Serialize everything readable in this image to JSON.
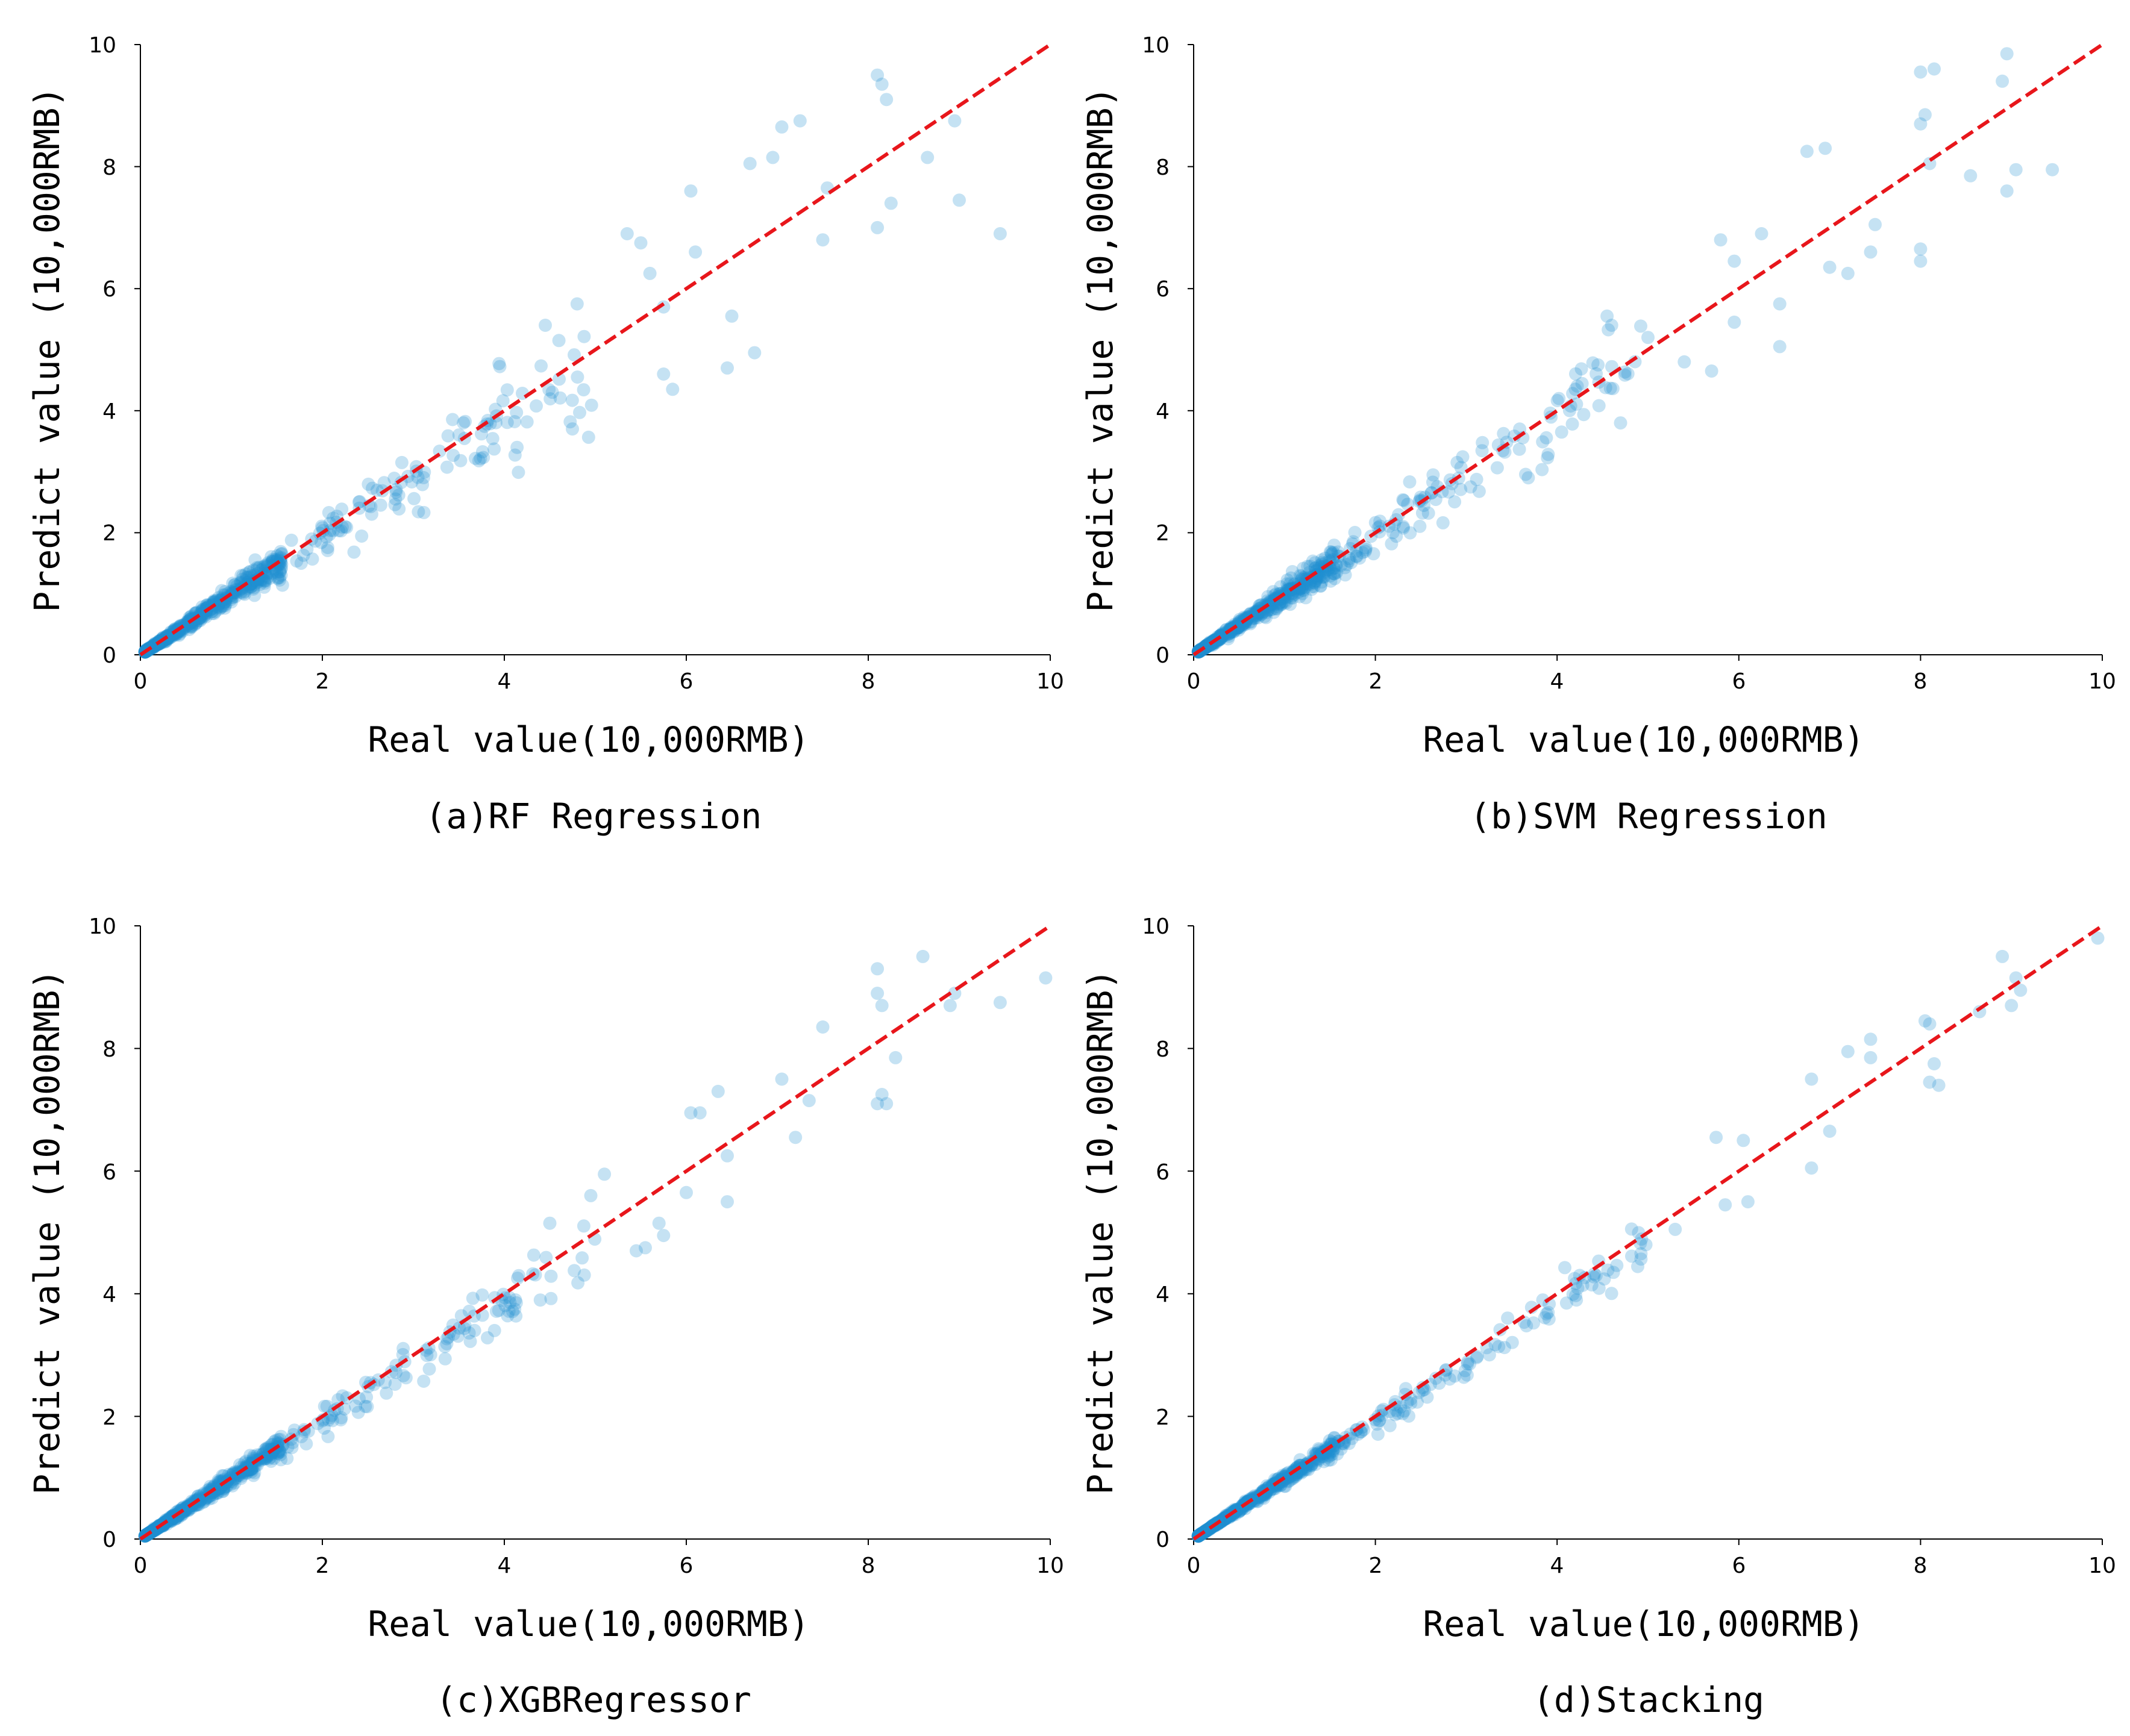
{
  "figure": {
    "colors": {
      "points": "#1f8fd0",
      "reference_line": "#e8161b",
      "axes": "#000000",
      "background": "#ffffff"
    }
  },
  "chart_data": [
    {
      "type": "scatter",
      "caption": "(a)RF Regression",
      "xlabel": "Real value(10,000RMB)",
      "ylabel": "Predict value (10,000RMB)",
      "xlim": [
        0,
        10
      ],
      "ylim": [
        0,
        10
      ],
      "xticks": [
        "0",
        "2",
        "4",
        "6",
        "8",
        "10"
      ],
      "yticks": [
        "0",
        "2",
        "4",
        "6",
        "8",
        "10"
      ],
      "reference_line": {
        "x": [
          0,
          10
        ],
        "y": [
          0,
          10
        ],
        "style": "dashed"
      },
      "highlight_points": [
        [
          8.1,
          9.5
        ],
        [
          8.15,
          9.35
        ],
        [
          8.2,
          9.1
        ],
        [
          7.25,
          8.75
        ],
        [
          7.05,
          8.65
        ],
        [
          6.7,
          8.05
        ],
        [
          6.95,
          8.15
        ],
        [
          7.55,
          7.65
        ],
        [
          8.65,
          8.15
        ],
        [
          8.95,
          8.75
        ],
        [
          9.0,
          7.45
        ],
        [
          9.45,
          6.9
        ],
        [
          7.5,
          6.8
        ],
        [
          8.1,
          7.0
        ],
        [
          8.25,
          7.4
        ],
        [
          6.05,
          7.6
        ],
        [
          6.1,
          6.6
        ],
        [
          5.35,
          6.9
        ],
        [
          5.5,
          6.75
        ],
        [
          5.6,
          6.25
        ],
        [
          5.75,
          5.7
        ],
        [
          6.5,
          5.55
        ],
        [
          6.75,
          4.95
        ],
        [
          6.45,
          4.7
        ],
        [
          5.85,
          4.35
        ],
        [
          5.75,
          4.6
        ],
        [
          4.8,
          5.75
        ],
        [
          4.45,
          5.4
        ],
        [
          4.6,
          5.15
        ]
      ],
      "seed": 11,
      "n_dense": 520,
      "n_sparse": 130,
      "dense_spread": 0.09,
      "sparse_spread": 0.11
    },
    {
      "type": "scatter",
      "caption": "(b)SVM Regression",
      "xlabel": "Real value(10,000RMB)",
      "ylabel": "Predict value (10,000RMB)",
      "xlim": [
        0,
        10
      ],
      "ylim": [
        0,
        10
      ],
      "xticks": [
        "0",
        "2",
        "4",
        "6",
        "8",
        "10"
      ],
      "yticks": [
        "0",
        "2",
        "4",
        "6",
        "8",
        "10"
      ],
      "reference_line": {
        "x": [
          0,
          10
        ],
        "y": [
          0,
          10
        ],
        "style": "dashed"
      },
      "highlight_points": [
        [
          8.0,
          9.55
        ],
        [
          8.95,
          9.85
        ],
        [
          8.15,
          9.6
        ],
        [
          8.9,
          9.4
        ],
        [
          8.05,
          8.85
        ],
        [
          8.0,
          8.7
        ],
        [
          6.75,
          8.25
        ],
        [
          6.95,
          8.3
        ],
        [
          8.1,
          8.05
        ],
        [
          8.55,
          7.85
        ],
        [
          9.05,
          7.95
        ],
        [
          8.95,
          7.6
        ],
        [
          9.45,
          7.95
        ],
        [
          8.0,
          6.65
        ],
        [
          8.0,
          6.45
        ],
        [
          7.5,
          7.05
        ],
        [
          7.45,
          6.6
        ],
        [
          7.0,
          6.35
        ],
        [
          7.2,
          6.25
        ],
        [
          6.25,
          6.9
        ],
        [
          5.8,
          6.8
        ],
        [
          5.95,
          6.45
        ],
        [
          6.45,
          5.75
        ],
        [
          5.95,
          5.45
        ],
        [
          6.45,
          5.05
        ],
        [
          5.4,
          4.8
        ],
        [
          5.7,
          4.65
        ],
        [
          5.0,
          5.2
        ],
        [
          4.55,
          5.55
        ],
        [
          4.6,
          5.4
        ],
        [
          4.45,
          4.75
        ],
        [
          4.2,
          4.35
        ],
        [
          4.05,
          3.65
        ]
      ],
      "seed": 23,
      "n_dense": 520,
      "n_sparse": 130,
      "dense_spread": 0.08,
      "sparse_spread": 0.1
    },
    {
      "type": "scatter",
      "caption": "(c)XGBRegressor",
      "xlabel": "Real value(10,000RMB)",
      "ylabel": "Predict value (10,000RMB)",
      "xlim": [
        0,
        10
      ],
      "ylim": [
        0,
        10
      ],
      "xticks": [
        "0",
        "2",
        "4",
        "6",
        "8",
        "10"
      ],
      "yticks": [
        "0",
        "2",
        "4",
        "6",
        "8",
        "10"
      ],
      "reference_line": {
        "x": [
          0,
          10
        ],
        "y": [
          0,
          10
        ],
        "style": "dashed"
      },
      "highlight_points": [
        [
          8.6,
          9.5
        ],
        [
          8.1,
          9.3
        ],
        [
          8.1,
          8.9
        ],
        [
          8.15,
          8.7
        ],
        [
          8.95,
          8.9
        ],
        [
          8.9,
          8.7
        ],
        [
          9.45,
          8.75
        ],
        [
          9.95,
          9.15
        ],
        [
          7.5,
          8.35
        ],
        [
          8.3,
          7.85
        ],
        [
          8.15,
          7.25
        ],
        [
          8.1,
          7.1
        ],
        [
          8.2,
          7.1
        ],
        [
          7.35,
          7.15
        ],
        [
          7.05,
          7.5
        ],
        [
          7.2,
          6.55
        ],
        [
          6.35,
          7.3
        ],
        [
          6.15,
          6.95
        ],
        [
          6.05,
          6.95
        ],
        [
          6.45,
          6.25
        ],
        [
          6.45,
          5.5
        ],
        [
          6.0,
          5.65
        ],
        [
          5.7,
          5.15
        ],
        [
          5.75,
          4.95
        ],
        [
          5.55,
          4.75
        ],
        [
          5.45,
          4.7
        ],
        [
          5.1,
          5.95
        ],
        [
          4.95,
          5.6
        ],
        [
          4.5,
          5.15
        ]
      ],
      "seed": 37,
      "n_dense": 520,
      "n_sparse": 120,
      "dense_spread": 0.06,
      "sparse_spread": 0.07
    },
    {
      "type": "scatter",
      "caption": "(d)Stacking",
      "xlabel": "Real value(10,000RMB)",
      "ylabel": "Predict value (10,000RMB)",
      "xlim": [
        0,
        10
      ],
      "ylim": [
        0,
        10
      ],
      "xticks": [
        "0",
        "2",
        "4",
        "6",
        "8",
        "10"
      ],
      "yticks": [
        "0",
        "2",
        "4",
        "6",
        "8",
        "10"
      ],
      "reference_line": {
        "x": [
          0,
          10
        ],
        "y": [
          0,
          10
        ],
        "style": "dashed"
      },
      "highlight_points": [
        [
          9.95,
          9.8
        ],
        [
          8.9,
          9.5
        ],
        [
          9.05,
          9.15
        ],
        [
          9.1,
          8.95
        ],
        [
          9.0,
          8.7
        ],
        [
          8.65,
          8.6
        ],
        [
          8.05,
          8.45
        ],
        [
          8.1,
          8.4
        ],
        [
          7.45,
          8.15
        ],
        [
          7.45,
          7.85
        ],
        [
          7.2,
          7.95
        ],
        [
          8.15,
          7.75
        ],
        [
          8.1,
          7.45
        ],
        [
          8.2,
          7.4
        ],
        [
          6.8,
          7.5
        ],
        [
          6.8,
          6.05
        ],
        [
          7.0,
          6.65
        ],
        [
          6.05,
          6.5
        ],
        [
          5.75,
          6.55
        ],
        [
          6.1,
          5.5
        ],
        [
          5.85,
          5.45
        ],
        [
          5.3,
          5.05
        ]
      ],
      "seed": 53,
      "n_dense": 520,
      "n_sparse": 120,
      "dense_spread": 0.045,
      "sparse_spread": 0.045
    }
  ]
}
